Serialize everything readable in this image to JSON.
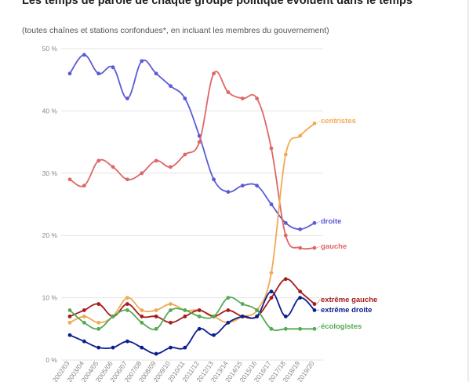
{
  "title": "Les temps de parole de chaque groupe politique évoluent dans le temps",
  "subtitle": "(toutes chaînes et stations confondues*, en incluant les membres du gouvernement)",
  "chart_data": {
    "type": "line",
    "categories": [
      "2002/03",
      "2003/04",
      "2004/05",
      "2005/06",
      "2006/07",
      "2007/08",
      "2008/09",
      "2009/10",
      "2010/11",
      "2011/12",
      "2012/13",
      "2013/14",
      "2014/15",
      "2015/16",
      "2016/17",
      "2017/18",
      "2018/19",
      "2019/20"
    ],
    "y_ticks": [
      "0 %",
      "10 %",
      "20 %",
      "30 %",
      "40 %",
      "50 %"
    ],
    "ylim": [
      0,
      50
    ],
    "grid": true,
    "legend": "inline labels at line ends",
    "series": [
      {
        "name": "droite",
        "color": "#5b5bd6",
        "values": [
          46,
          49,
          46,
          47,
          42,
          48,
          46,
          44,
          42,
          36,
          29,
          27,
          28,
          28,
          25,
          22,
          21,
          22
        ]
      },
      {
        "name": "gauche",
        "color": "#e06666",
        "values": [
          29,
          28,
          32,
          31,
          29,
          30,
          32,
          31,
          33,
          35,
          46,
          43,
          42,
          42,
          34,
          20,
          18,
          18
        ]
      },
      {
        "name": "centristes",
        "color": "#f0aa55",
        "values": [
          6,
          7,
          6,
          7,
          10,
          8,
          8,
          9,
          8,
          8,
          7,
          6,
          7,
          8,
          14,
          33,
          36,
          38
        ]
      },
      {
        "name": "extrême gauche",
        "color": "#a61c1c",
        "values": [
          7,
          8,
          9,
          7,
          9,
          7,
          7,
          6,
          7,
          8,
          7,
          8,
          7,
          7,
          10,
          13,
          11,
          9
        ]
      },
      {
        "name": "extrême droite",
        "color": "#0a1f8f",
        "values": [
          4,
          3,
          2,
          2,
          3,
          2,
          1,
          2,
          2,
          5,
          4,
          6,
          7,
          7,
          11,
          7,
          10,
          8
        ]
      },
      {
        "name": "écologistes",
        "color": "#55aa55",
        "values": [
          8,
          6,
          5,
          7,
          8,
          6,
          5,
          8,
          8,
          7,
          7,
          10,
          9,
          8,
          5,
          5,
          5,
          5
        ]
      }
    ]
  }
}
